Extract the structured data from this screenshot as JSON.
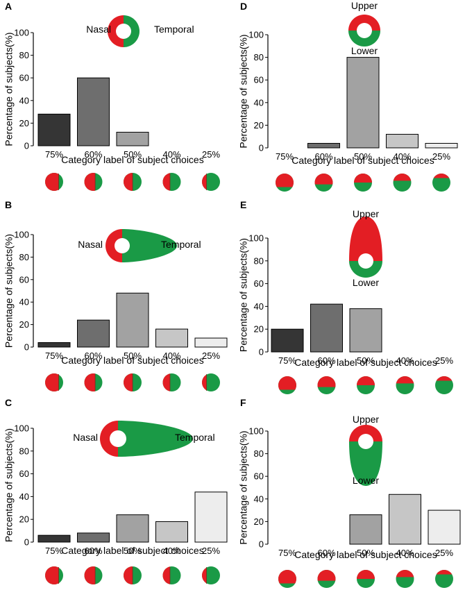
{
  "colors": {
    "red": "#e31e24",
    "green": "#1a9a46",
    "bar_75": "#353535",
    "bar_60": "#6e6e6e",
    "bar_50": "#a2a2a2",
    "bar_40": "#c6c6c6",
    "bar_25": "#ededed"
  },
  "chart_data": [
    {
      "type": "bar",
      "panel": "A",
      "categories": [
        "75%",
        "60%",
        "50%",
        "40%",
        "25%"
      ],
      "values": [
        28,
        60,
        12,
        0,
        0
      ],
      "xlabel": "Category label of subject choices",
      "ylabel": "Percentage of subjects(%)",
      "ylim": [
        0,
        100
      ],
      "yticks": [
        0,
        20,
        40,
        60,
        80,
        100
      ],
      "inset": {
        "shape": "horizontal",
        "elongation": 0,
        "left_label": "Nasal",
        "right_label": "Temporal"
      },
      "choice_red_fractions": [
        0.75,
        0.6,
        0.5,
        0.4,
        0.25
      ],
      "choice_orientation": "vertical-split"
    },
    {
      "type": "bar",
      "panel": "B",
      "categories": [
        "75%",
        "60%",
        "50%",
        "40%",
        "25%"
      ],
      "values": [
        4,
        24,
        48,
        16,
        8
      ],
      "xlabel": "Category label of subject choices",
      "ylabel": "Percentage of subjects(%)",
      "ylim": [
        0,
        100
      ],
      "yticks": [
        0,
        20,
        40,
        60,
        80,
        100
      ],
      "inset": {
        "shape": "horizontal",
        "elongation": 1,
        "left_label": "Nasal",
        "right_label": "Temporal"
      },
      "choice_red_fractions": [
        0.75,
        0.6,
        0.5,
        0.4,
        0.25
      ],
      "choice_orientation": "vertical-split"
    },
    {
      "type": "bar",
      "panel": "C",
      "categories": [
        "75%",
        "60%",
        "50%",
        "40%",
        "25%"
      ],
      "values": [
        6,
        8,
        24,
        18,
        44
      ],
      "xlabel": "Category label of subject choices",
      "ylabel": "Percentage of subjects(%)",
      "ylim": [
        0,
        100
      ],
      "yticks": [
        0,
        20,
        40,
        60,
        80,
        100
      ],
      "inset": {
        "shape": "horizontal",
        "elongation": 2,
        "left_label": "Nasal",
        "right_label": "Temporal"
      },
      "choice_red_fractions": [
        0.75,
        0.6,
        0.5,
        0.4,
        0.25
      ],
      "choice_orientation": "vertical-split"
    },
    {
      "type": "bar",
      "panel": "D",
      "categories": [
        "75%",
        "60%",
        "50%",
        "40%",
        "25%"
      ],
      "values": [
        0,
        4,
        80,
        12,
        4
      ],
      "xlabel": "Category label of subject choices",
      "ylabel": "Percentage of subjects(%)",
      "ylim": [
        0,
        100
      ],
      "yticks": [
        0,
        20,
        40,
        60,
        80,
        100
      ],
      "inset": {
        "shape": "vertical",
        "elongation": 0,
        "top_label": "Upper",
        "bottom_label": "Lower",
        "elongated_color": "none"
      },
      "choice_red_fractions": [
        0.75,
        0.6,
        0.5,
        0.4,
        0.25
      ],
      "choice_orientation": "horizontal-split"
    },
    {
      "type": "bar",
      "panel": "E",
      "categories": [
        "75%",
        "60%",
        "50%",
        "40%",
        "25%"
      ],
      "values": [
        20,
        42,
        38,
        0,
        0
      ],
      "xlabel": "Category label of subject choices",
      "ylabel": "Percentage of subjects(%)",
      "ylim": [
        0,
        100
      ],
      "yticks": [
        0,
        20,
        40,
        60,
        80,
        100
      ],
      "inset": {
        "shape": "vertical",
        "elongation": 2,
        "top_label": "Upper",
        "bottom_label": "Lower",
        "elongated_color": "red"
      },
      "choice_red_fractions": [
        0.75,
        0.6,
        0.5,
        0.4,
        0.25
      ],
      "choice_orientation": "horizontal-split"
    },
    {
      "type": "bar",
      "panel": "F",
      "categories": [
        "75%",
        "60%",
        "50%",
        "40%",
        "25%"
      ],
      "values": [
        0,
        0,
        26,
        44,
        30
      ],
      "xlabel": "Category label of subject choices",
      "ylabel": "Percentage of subjects(%)",
      "ylim": [
        0,
        100
      ],
      "yticks": [
        0,
        20,
        40,
        60,
        80,
        100
      ],
      "inset": {
        "shape": "vertical",
        "elongation": 2,
        "top_label": "Upper",
        "bottom_label": "Lower",
        "elongated_color": "green"
      },
      "choice_red_fractions": [
        0.75,
        0.6,
        0.5,
        0.4,
        0.25
      ],
      "choice_orientation": "horizontal-split"
    }
  ]
}
